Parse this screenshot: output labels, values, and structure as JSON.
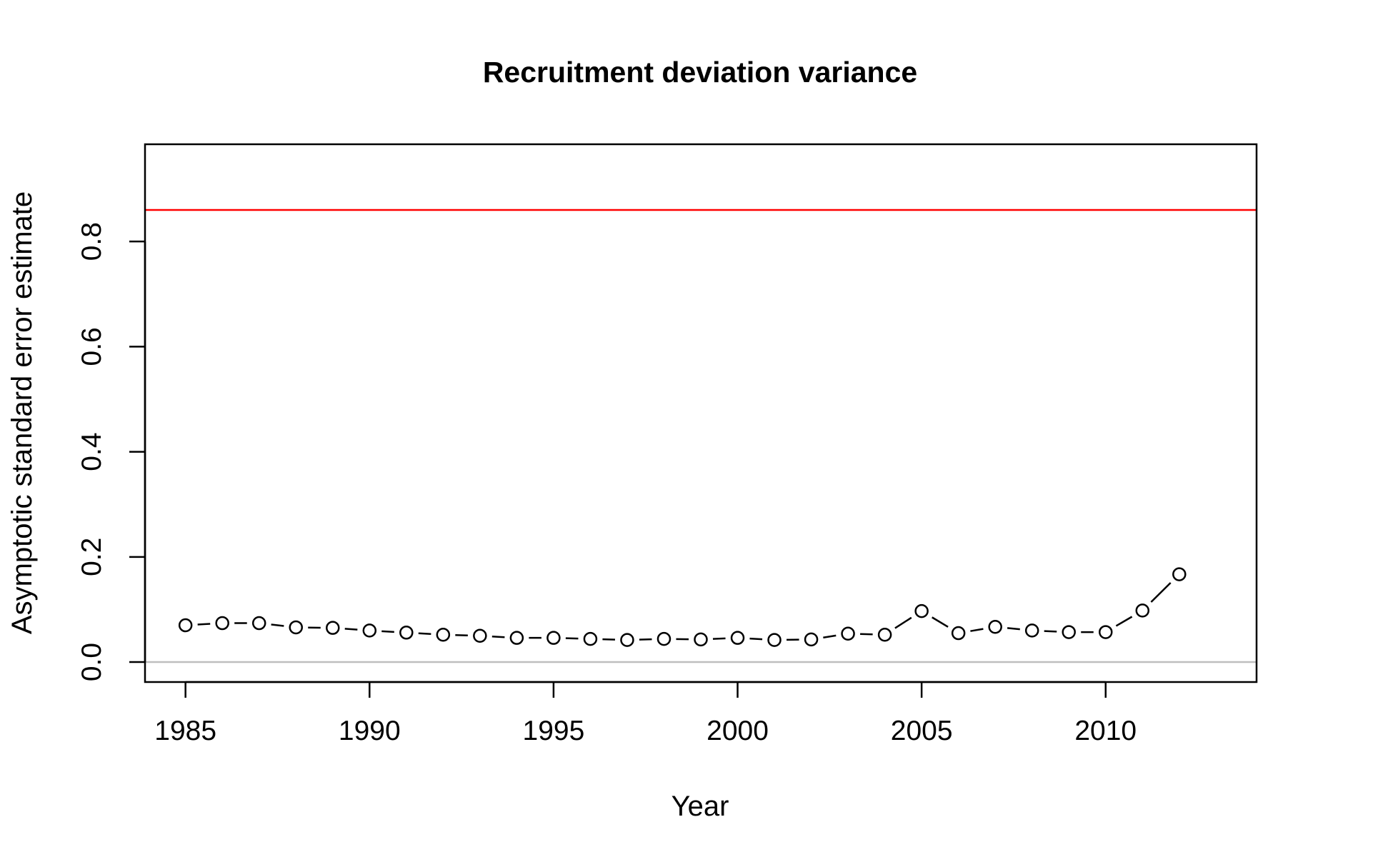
{
  "chart_data": {
    "type": "line",
    "title": "Recruitment deviation variance",
    "xlabel": "Year",
    "ylabel": "Asymptotic standard error estimate",
    "xlim": [
      1983.9,
      2014.1
    ],
    "ylim": [
      -0.038,
      0.985
    ],
    "x_ticks": [
      1985,
      1990,
      1995,
      2000,
      2005,
      2010
    ],
    "y_ticks": [
      0.0,
      0.2,
      0.4,
      0.6,
      0.8
    ],
    "y_tick_labels": [
      "0.0",
      "0.2",
      "0.4",
      "0.6",
      "0.8"
    ],
    "grid": false,
    "x": [
      1985,
      1986,
      1987,
      1988,
      1989,
      1990,
      1991,
      1992,
      1993,
      1994,
      1995,
      1996,
      1997,
      1998,
      1999,
      2000,
      2001,
      2002,
      2003,
      2004,
      2005,
      2006,
      2007,
      2008,
      2009,
      2010,
      2011,
      2012
    ],
    "values": [
      0.07,
      0.074,
      0.074,
      0.066,
      0.065,
      0.06,
      0.056,
      0.052,
      0.05,
      0.046,
      0.046,
      0.044,
      0.042,
      0.044,
      0.043,
      0.046,
      0.042,
      0.043,
      0.054,
      0.052,
      0.097,
      0.055,
      0.067,
      0.06,
      0.057,
      0.057,
      0.098,
      0.167
    ],
    "reference_lines": [
      {
        "y": 0.86,
        "color": "#ff0000"
      },
      {
        "y": 0.0,
        "color": "#bebebe"
      }
    ],
    "point_color": "#000000",
    "line_color": "#000000"
  }
}
